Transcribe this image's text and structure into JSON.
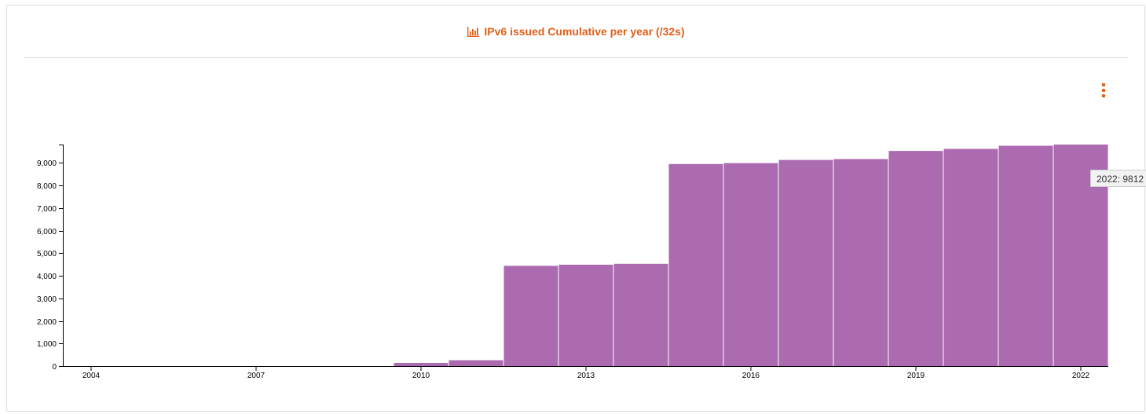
{
  "header": {
    "title": "IPv6 issued Cumulative per year (/32s)",
    "title_icon": "bar-chart-icon",
    "menu_icon": "vertical-ellipsis-icon"
  },
  "colors": {
    "title": "#e0601a",
    "bar": "#ac6ab0",
    "menu": "#e0601a"
  },
  "tooltip": {
    "text": "2022: 9812"
  },
  "chart_data": {
    "type": "bar",
    "title": "IPv6 issued Cumulative per year (/32s)",
    "xlabel": "",
    "ylabel": "",
    "categories": [
      "2004",
      "2005",
      "2006",
      "2007",
      "2008",
      "2009",
      "2010",
      "2011",
      "2012",
      "2013",
      "2014",
      "2015",
      "2016",
      "2017",
      "2018",
      "2019",
      "2020",
      "2021",
      "2022"
    ],
    "values": [
      0,
      0,
      0,
      0,
      0,
      0,
      140,
      260,
      4440,
      4490,
      4530,
      8950,
      8990,
      9130,
      9170,
      9530,
      9620,
      9760,
      9812
    ],
    "x_tick_labels": [
      "2004",
      "2007",
      "2010",
      "2013",
      "2016",
      "2019",
      "2022"
    ],
    "y_ticks": [
      0,
      1000,
      2000,
      3000,
      4000,
      5000,
      6000,
      7000,
      8000,
      9000
    ],
    "y_tick_labels": [
      "0",
      "1,000",
      "2,000",
      "3,000",
      "4,000",
      "5,000",
      "6,000",
      "7,000",
      "8,000",
      "9,000"
    ],
    "ylim": [
      0,
      9812
    ],
    "grid": false,
    "legend": "none"
  }
}
